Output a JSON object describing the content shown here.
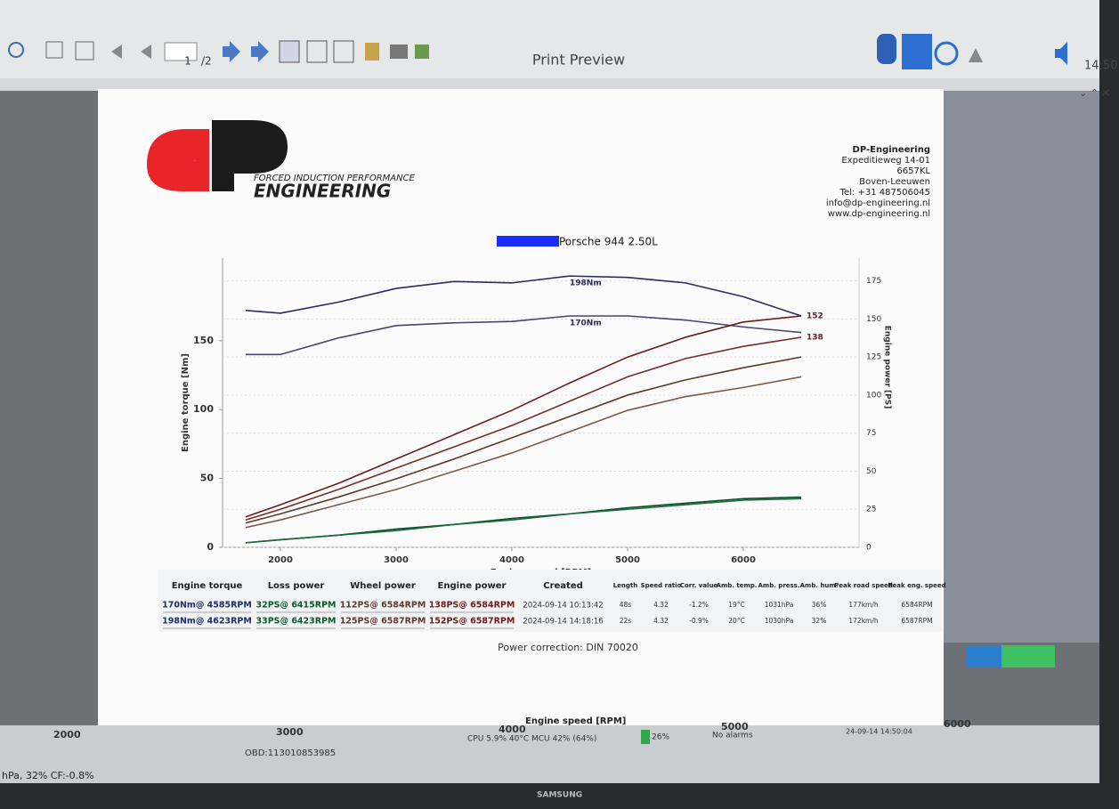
{
  "toolbar": {
    "page": "1",
    "of": "/2",
    "title": "Print Preview",
    "clock": "14:50"
  },
  "logo": {
    "mark": "dP",
    "tagline": "FORCED INDUCTION PERFORMANCE",
    "name": "ENGINEERING"
  },
  "address": [
    "DP-Engineering",
    "Expeditieweg 14-01",
    "6657KL",
    "Boven-Leeuwen",
    "Tel: +31 487506045",
    "info@dp-engineering.nl",
    "www.dp-engineering.nl"
  ],
  "chart_data": {
    "type": "line",
    "title": "Porsche 944 2.50L",
    "x_label": "Engine speed [RPM]",
    "y_label": "Engine torque [Nm]",
    "y2_label": "Engine power [PS]",
    "x": [
      1700,
      2000,
      2500,
      3000,
      3500,
      4000,
      4500,
      5000,
      5500,
      6000,
      6500
    ],
    "xlim": [
      1500,
      7000
    ],
    "xticks": [
      2000,
      3000,
      4000,
      5000,
      6000
    ],
    "ylim": [
      0,
      210
    ],
    "yticks": [
      0,
      50,
      100,
      150
    ],
    "y2lim": [
      0,
      190
    ],
    "y2ticks": [
      0,
      25,
      50,
      75,
      100,
      125,
      150,
      175
    ],
    "grid": true,
    "series": [
      {
        "color": "#2b2b5e",
        "values": [
          172,
          170,
          178,
          188,
          193,
          192,
          197,
          196,
          192,
          182,
          168
        ]
      },
      {
        "color": "#44446e",
        "values": [
          140,
          140,
          152,
          161,
          163,
          164,
          168,
          168,
          165,
          160,
          156
        ]
      },
      {
        "color": "#6b1c1c",
        "axis": "y2",
        "values": [
          20,
          28,
          42,
          58,
          74,
          90,
          108,
          125,
          138,
          148,
          152
        ]
      },
      {
        "color": "#7a2e2a",
        "axis": "y2",
        "values": [
          18,
          25,
          38,
          52,
          66,
          80,
          96,
          112,
          124,
          132,
          138
        ]
      },
      {
        "color": "#5e3a2a",
        "axis": "y2",
        "values": [
          16,
          22,
          33,
          45,
          58,
          72,
          86,
          100,
          110,
          118,
          125
        ]
      },
      {
        "color": "#7a5a4a",
        "axis": "y2",
        "values": [
          13,
          18,
          28,
          38,
          50,
          62,
          76,
          90,
          99,
          105,
          112
        ]
      },
      {
        "color": "#0b4f2a",
        "axis": "y2",
        "values": [
          3,
          5,
          8,
          12,
          15,
          19,
          22,
          26,
          29,
          32,
          33
        ]
      },
      {
        "color": "#1a6a3a",
        "axis": "y2",
        "values": [
          3,
          5,
          8,
          11,
          15,
          18,
          22,
          25,
          28,
          31,
          32
        ]
      }
    ],
    "annotations": [
      "198Nm",
      "170Nm",
      "152",
      "138"
    ]
  },
  "table": {
    "headers": [
      "Engine torque",
      "Loss power",
      "Wheel power",
      "Engine power",
      "Created",
      "Length",
      "Speed ratio",
      "Corr. value",
      "Amb. temp.",
      "Amb. press.",
      "Amb. hum.",
      "Peak road speed",
      "Peak eng. speed"
    ],
    "rows": [
      [
        "170Nm@ 4585RPM",
        "32PS@ 6415RPM",
        "112PS@ 6584RPM",
        "138PS@ 6584RPM",
        "2024-09-14 10:13:42",
        "48s",
        "4.32",
        "-1.2%",
        "19°C",
        "1031hPa",
        "36%",
        "177km/h",
        "6584RPM"
      ],
      [
        "198Nm@ 4623RPM",
        "33PS@ 6423RPM",
        "125PS@ 6587RPM",
        "152PS@ 6587RPM",
        "2024-09-14 14:18:16",
        "22s",
        "4.32",
        "-0.9%",
        "20°C",
        "1030hPa",
        "32%",
        "172km/h",
        "6587RPM"
      ]
    ]
  },
  "footer": "Power correction: DIN 70020",
  "background_app": {
    "axis_label": "Engine speed [RPM]",
    "ticks": [
      "2000",
      "3000",
      "4000",
      "5000",
      "6000"
    ],
    "obd": "OBD:113010853985",
    "cpu": "CPU 5.9% 40°C MCU 42% (64%)",
    "load": "26%",
    "alarms": "No alarms",
    "timestamp": "24-09-14 14:50:04",
    "status": "hPa, 32% CF:-0.8%",
    "brand": "SAMSUNG"
  }
}
